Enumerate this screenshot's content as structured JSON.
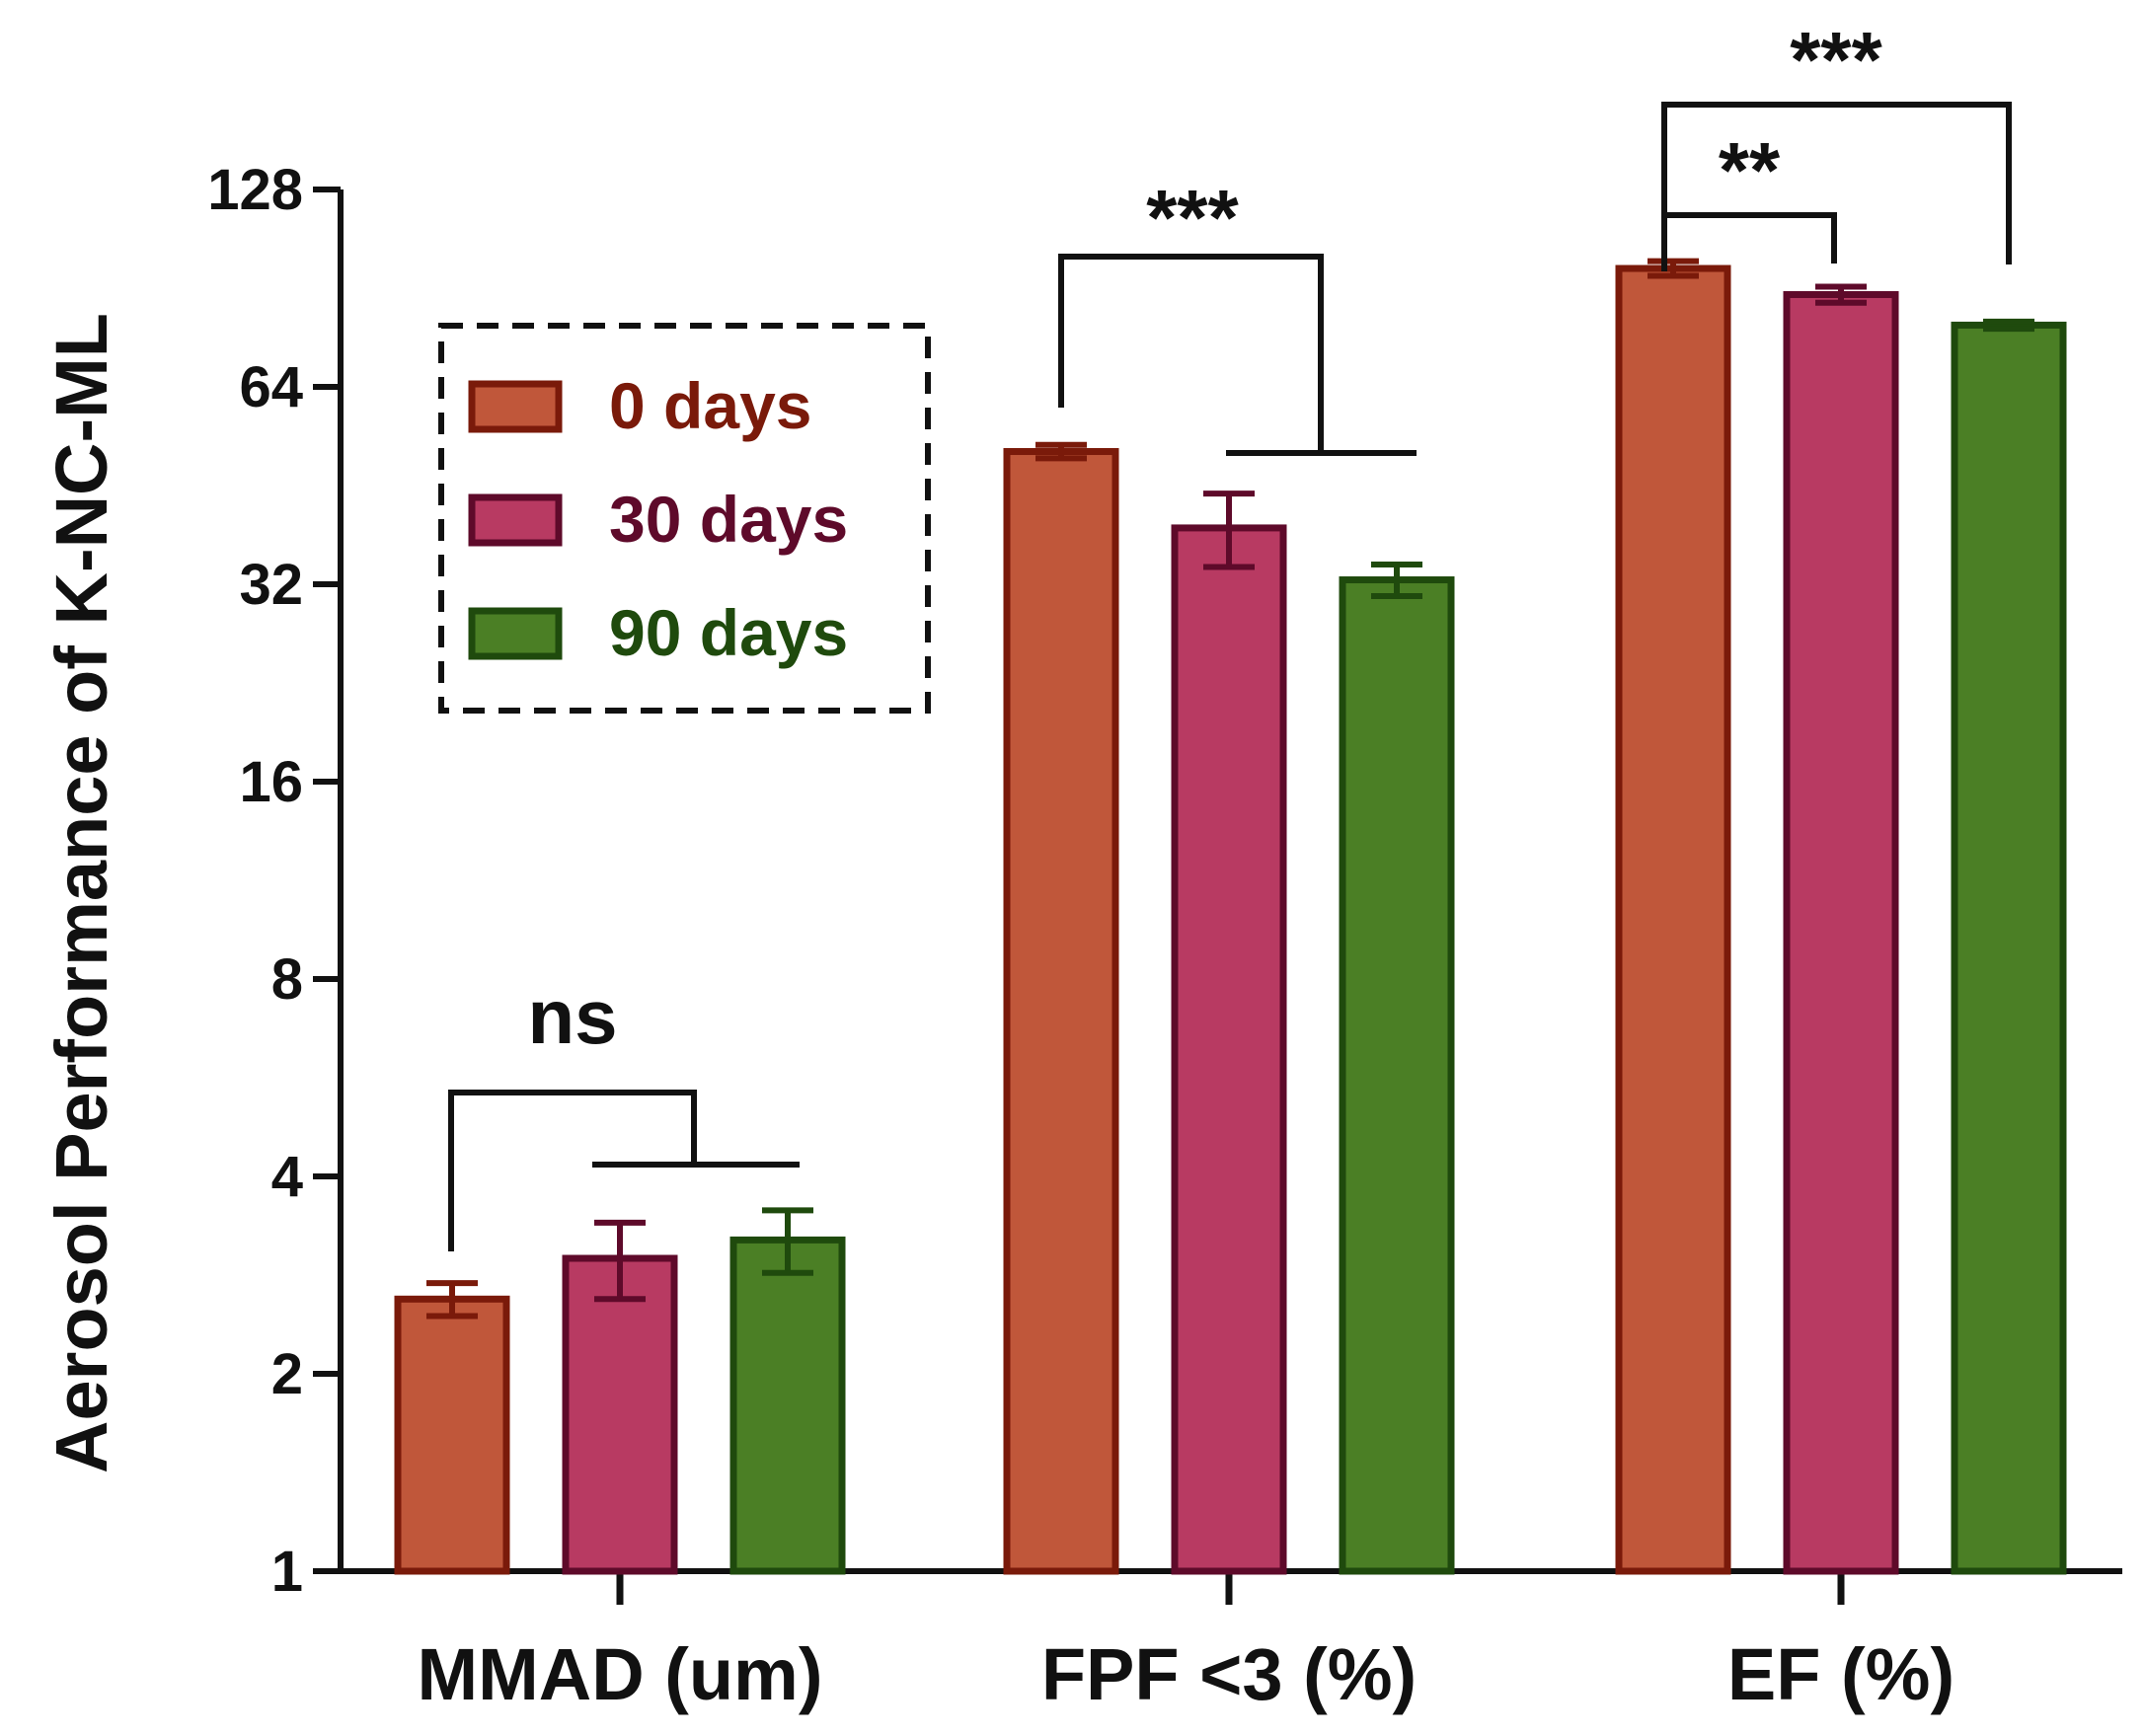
{
  "chart_data": {
    "type": "bar",
    "ylabel": "Aerosol Performance of K-NC-ML",
    "y_scale": "log2",
    "ylim": [
      1,
      128
    ],
    "y_ticks": [
      "1",
      "2",
      "4",
      "8",
      "16",
      "32",
      "64",
      "128"
    ],
    "categories": [
      "MMAD (um)",
      "FPF <3 (%)",
      "EF (%)"
    ],
    "series": [
      {
        "name": "0 days",
        "color": "#c0573a",
        "edge": "#7a1a0a",
        "values": [
          2.6,
          51.0,
          97.0
        ],
        "errors": [
          0.15,
          1.2,
          2.5
        ]
      },
      {
        "name": "30 days",
        "color": "#b83a62",
        "edge": "#5e0a2a",
        "values": [
          3.0,
          39.0,
          88.5
        ],
        "errors": [
          0.4,
          5.0,
          2.5
        ]
      },
      {
        "name": "90 days",
        "color": "#4b7f25",
        "edge": "#1f4a0d",
        "values": [
          3.2,
          32.5,
          79.5
        ],
        "errors": [
          0.35,
          1.8,
          1.0
        ]
      }
    ],
    "legend": {
      "position": "top-left",
      "border": "dashed"
    },
    "significance": [
      {
        "group": 0,
        "label": "ns"
      },
      {
        "group": 1,
        "label": "***"
      },
      {
        "group": 2,
        "label": "**"
      },
      {
        "group": 2,
        "label": "***"
      }
    ]
  }
}
